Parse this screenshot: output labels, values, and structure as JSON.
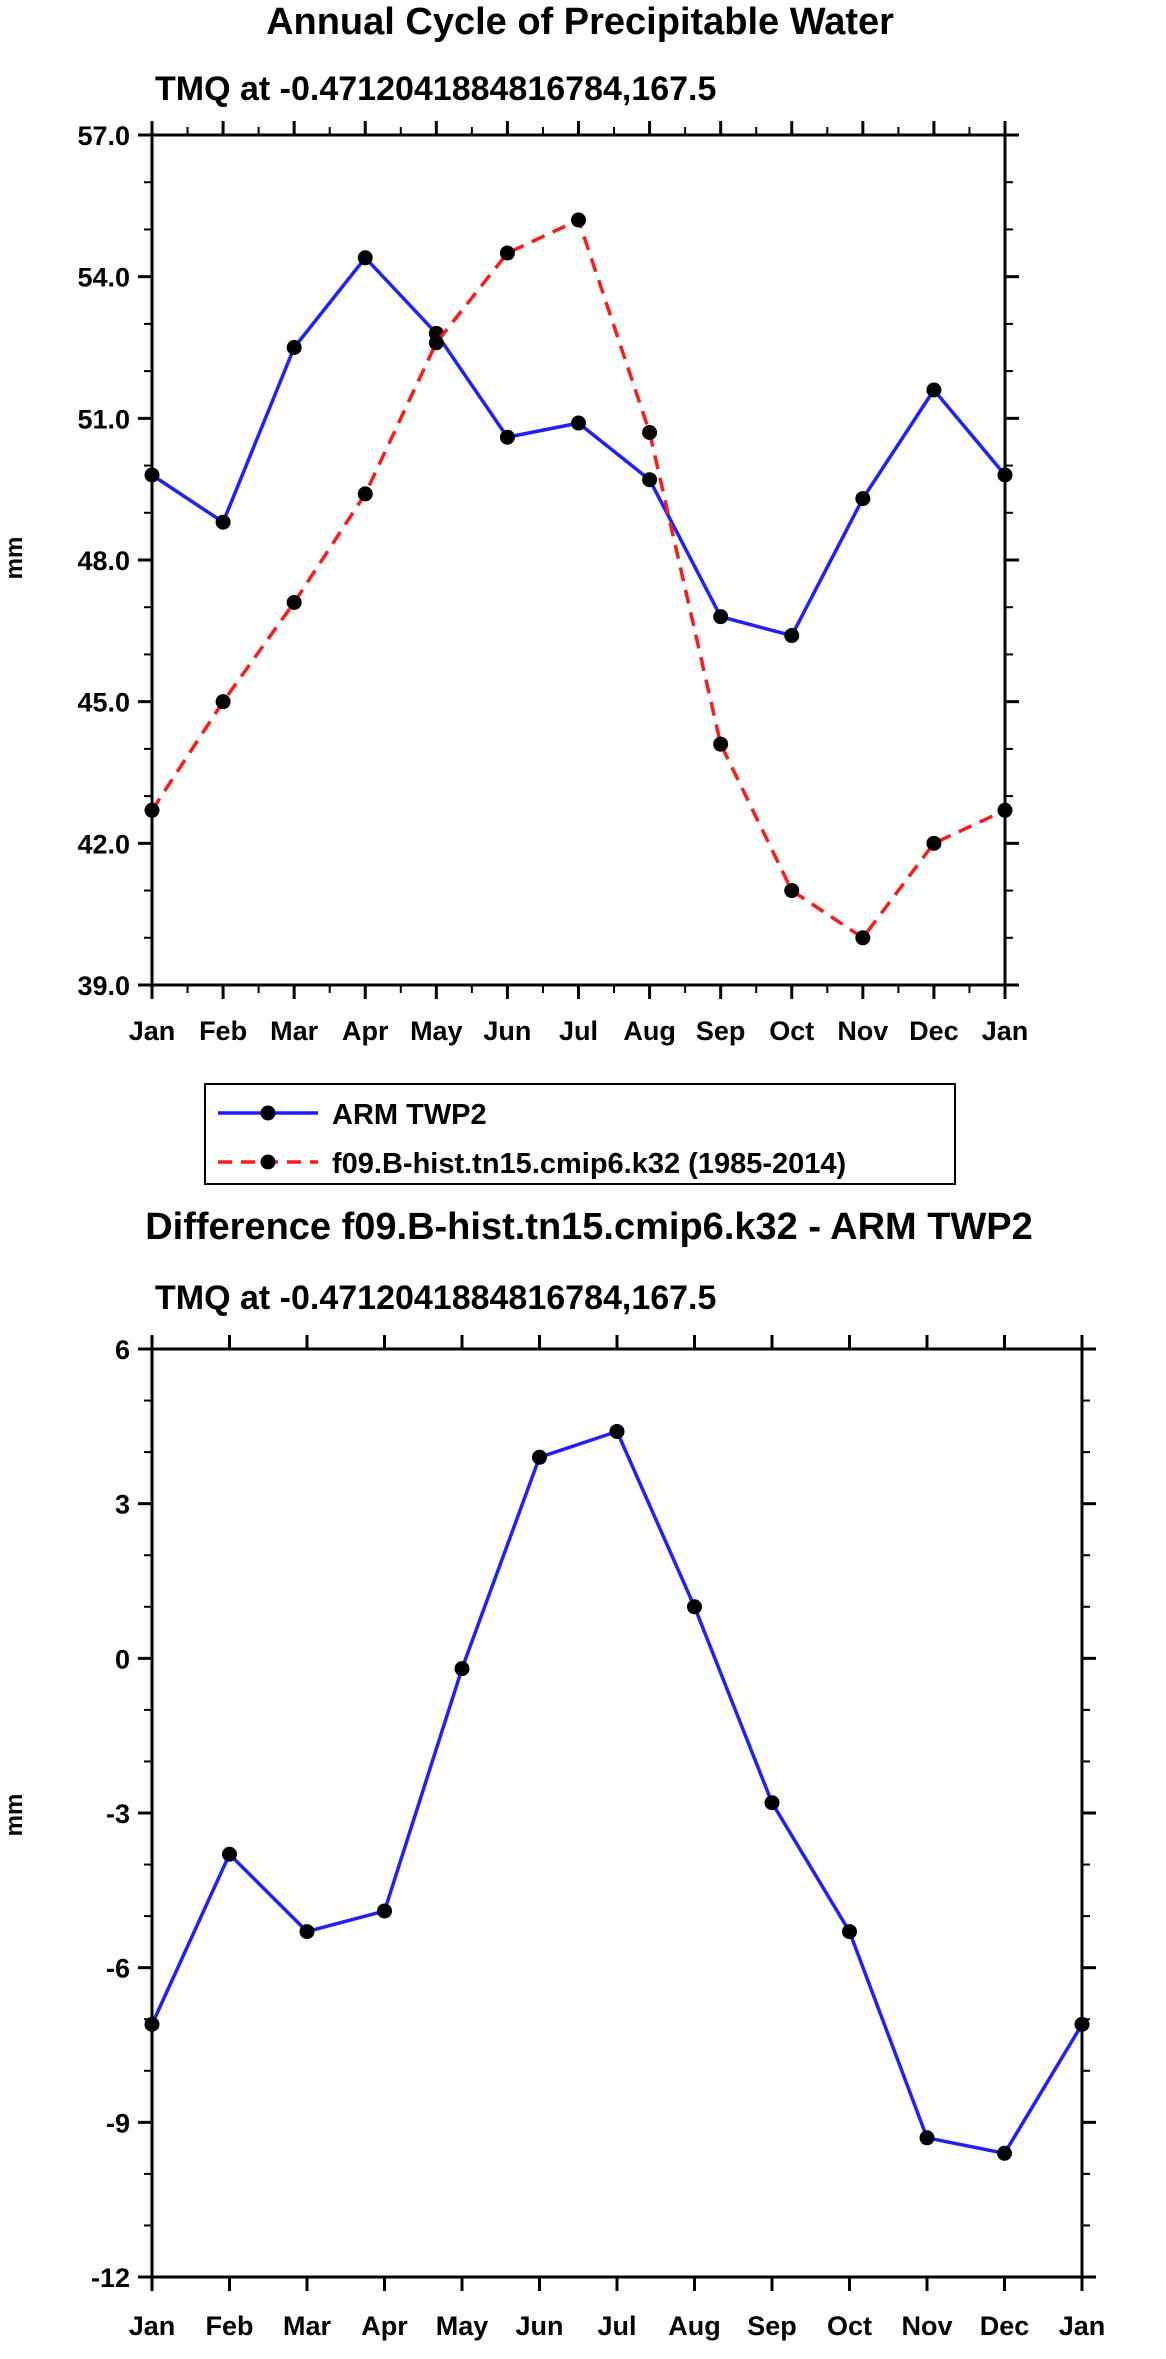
{
  "chart_data": [
    {
      "type": "line",
      "title": "Annual Cycle of Precipitable Water",
      "subtitle": "TMQ at -0.4712041884816784,167.5",
      "xlabel": "",
      "ylabel": "mm",
      "categories": [
        "Jan",
        "Feb",
        "Mar",
        "Apr",
        "May",
        "Jun",
        "Jul",
        "Aug",
        "Sep",
        "Oct",
        "Nov",
        "Dec",
        "Jan"
      ],
      "ylim": [
        39.0,
        57.0
      ],
      "yticks": [
        "39.0",
        "42.0",
        "45.0",
        "48.0",
        "51.0",
        "54.0",
        "57.0"
      ],
      "ytick_values": [
        39,
        42,
        45,
        48,
        51,
        54,
        57
      ],
      "yminor_step": 1,
      "series": [
        {
          "name": "ARM TWP2",
          "color": "#1f1fff",
          "dash": "solid",
          "values": [
            49.8,
            48.8,
            52.5,
            54.4,
            52.8,
            50.6,
            50.9,
            49.7,
            46.8,
            46.4,
            49.3,
            51.6,
            49.8
          ]
        },
        {
          "name": "f09.B-hist.tn15.cmip6.k32 (1985-2014)",
          "color": "#ff1a1a",
          "dash": "dashed",
          "values": [
            42.7,
            45.0,
            47.1,
            49.4,
            52.6,
            54.5,
            55.2,
            50.7,
            44.1,
            41.0,
            40.0,
            42.0,
            42.7
          ]
        }
      ],
      "legend": {
        "position": "below",
        "entries": [
          "ARM TWP2",
          "f09.B-hist.tn15.cmip6.k32 (1985-2014)"
        ]
      }
    },
    {
      "type": "line",
      "title": "Difference f09.B-hist.tn15.cmip6.k32 - ARM TWP2",
      "subtitle": "TMQ at -0.4712041884816784,167.5",
      "xlabel": "",
      "ylabel": "mm",
      "categories": [
        "Jan",
        "Feb",
        "Mar",
        "Apr",
        "May",
        "Jun",
        "Jul",
        "Aug",
        "Sep",
        "Oct",
        "Nov",
        "Dec",
        "Jan"
      ],
      "ylim": [
        -12,
        6
      ],
      "yticks": [
        "-12",
        "-9",
        "-6",
        "-3",
        "0",
        "3",
        "6"
      ],
      "ytick_values": [
        -12,
        -9,
        -6,
        -3,
        0,
        3,
        6
      ],
      "yminor_step": 1,
      "series": [
        {
          "name": "Difference",
          "color": "#1f1fff",
          "dash": "solid",
          "values": [
            -7.1,
            -3.8,
            -5.3,
            -4.9,
            -0.2,
            3.9,
            4.4,
            1.0,
            -2.8,
            -5.3,
            -9.3,
            -9.6,
            -7.1
          ]
        }
      ]
    }
  ]
}
